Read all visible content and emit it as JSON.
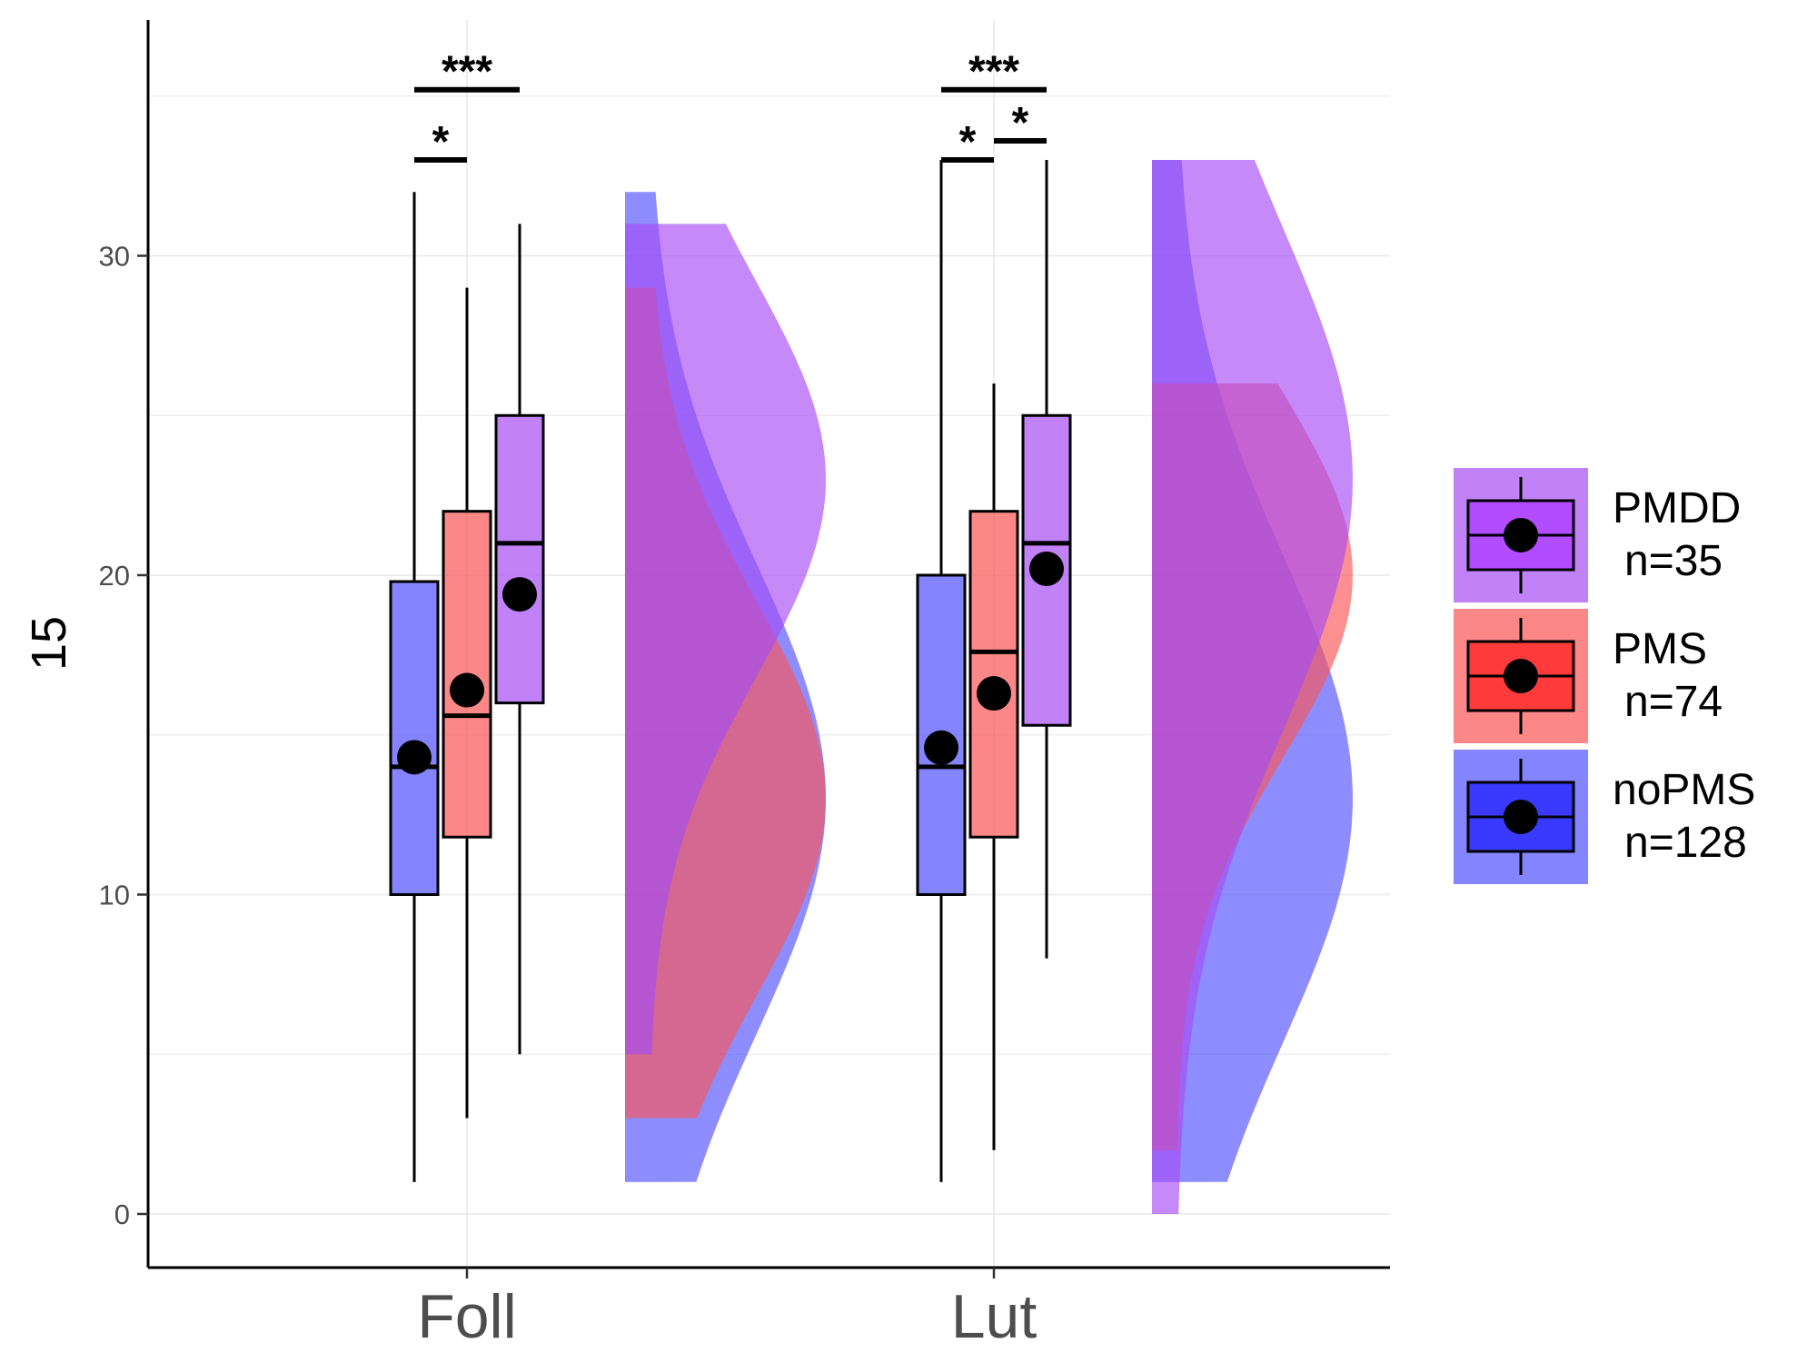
{
  "chart_data": {
    "type": "raincloud-boxplot",
    "ylabel": "15",
    "xlabel": "",
    "title": "",
    "ylim": [
      -1.7,
      36.5
    ],
    "yticks": [
      0,
      10,
      20,
      30
    ],
    "categories": [
      "Foll",
      "Lut"
    ],
    "grid": true,
    "legend_position": "right",
    "series": [
      {
        "key": "PMDD",
        "name": "PMDD",
        "n_label": "n=35",
        "fill": "#a64bf4",
        "mean_fill": "#b24cff",
        "boxes": [
          {
            "category": "Foll",
            "whisker_low": 5,
            "q1": 16,
            "median": 21,
            "q3": 25,
            "whisker_high": 31,
            "mean": 19.4
          },
          {
            "category": "Lut",
            "whisker_low": 8,
            "q1": 15.3,
            "median": 21,
            "q3": 25,
            "whisker_high": 33,
            "mean": 20.2
          }
        ],
        "densities": [
          {
            "category": "Foll",
            "min": 5,
            "max": 31,
            "mode": 23
          },
          {
            "category": "Lut",
            "min": 0,
            "max": 33,
            "mode": 23
          }
        ]
      },
      {
        "key": "PMS",
        "name": "PMS",
        "n_label": "n=74",
        "fill": "#fa5454",
        "mean_fill": "#ff3a3a",
        "boxes": [
          {
            "category": "Foll",
            "whisker_low": 3,
            "q1": 11.8,
            "median": 15.6,
            "q3": 22,
            "whisker_high": 29,
            "mean": 16.4
          },
          {
            "category": "Lut",
            "whisker_low": 2,
            "q1": 11.8,
            "median": 17.6,
            "q3": 22,
            "whisker_high": 26,
            "mean": 16.3
          }
        ],
        "densities": [
          {
            "category": "Foll",
            "min": 3,
            "max": 29,
            "mode": 13
          },
          {
            "category": "Lut",
            "min": 2,
            "max": 26,
            "mode": 20
          }
        ]
      },
      {
        "key": "noPMS",
        "name": "noPMS",
        "n_label": "n=128",
        "fill": "#5050ff",
        "mean_fill": "#3a3aff",
        "boxes": [
          {
            "category": "Foll",
            "whisker_low": 1,
            "q1": 10,
            "median": 14,
            "q3": 19.8,
            "whisker_high": 32,
            "mean": 14.3
          },
          {
            "category": "Lut",
            "whisker_low": 1,
            "q1": 10,
            "median": 14,
            "q3": 20,
            "whisker_high": 33,
            "mean": 14.6
          }
        ],
        "densities": [
          {
            "category": "Foll",
            "min": 1,
            "max": 32,
            "mode": 13
          },
          {
            "category": "Lut",
            "min": 1,
            "max": 33,
            "mode": 13
          }
        ]
      }
    ],
    "significance": [
      {
        "category": "Foll",
        "label": "***",
        "from": "noPMS",
        "to": "PMDD",
        "y": 35.2
      },
      {
        "category": "Foll",
        "label": "*",
        "from": "noPMS",
        "to": "PMS",
        "y": 33
      },
      {
        "category": "Lut",
        "label": "***",
        "from": "noPMS",
        "to": "PMDD",
        "y": 35.2
      },
      {
        "category": "Lut",
        "label": "*",
        "from": "noPMS",
        "to": "PMS",
        "y": 33
      },
      {
        "category": "Lut",
        "label": "*",
        "from": "PMS",
        "to": "PMDD",
        "y": 33.6
      }
    ],
    "legend_order": [
      "PMDD",
      "PMS",
      "noPMS"
    ]
  }
}
